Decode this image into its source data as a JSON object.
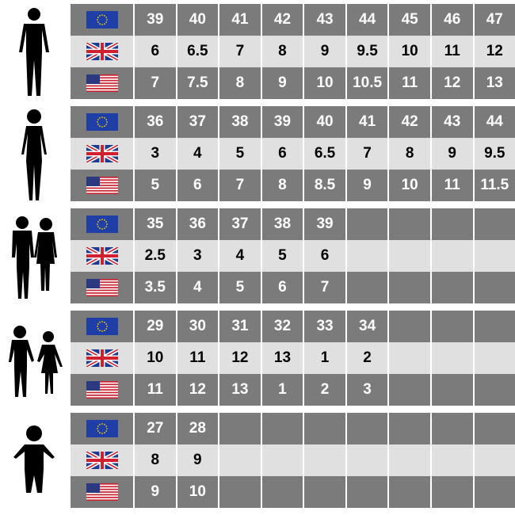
{
  "colors": {
    "dark_row": "#7b7b7b",
    "light_row": "#e0e0e0"
  },
  "row_flags": [
    "eu-flag-icon",
    "uk-flag-icon",
    "us-flag-icon"
  ],
  "groups": [
    {
      "figure": "man-silhouette-icon",
      "rows": [
        [
          "39",
          "40",
          "41",
          "42",
          "43",
          "44",
          "45",
          "46",
          "47"
        ],
        [
          "6",
          "6.5",
          "7",
          "8",
          "9",
          "9.5",
          "10",
          "11",
          "12"
        ],
        [
          "7",
          "7.5",
          "8",
          "9",
          "10",
          "10.5",
          "11",
          "12",
          "13"
        ]
      ]
    },
    {
      "figure": "woman-silhouette-icon",
      "rows": [
        [
          "36",
          "37",
          "38",
          "39",
          "40",
          "41",
          "42",
          "43",
          "44"
        ],
        [
          "3",
          "4",
          "5",
          "6",
          "6.5",
          "7",
          "8",
          "9",
          "9.5"
        ],
        [
          "5",
          "6",
          "7",
          "8",
          "8.5",
          "9",
          "10",
          "11",
          "11.5"
        ]
      ]
    },
    {
      "figure": "teens-silhouette-icon",
      "rows": [
        [
          "35",
          "36",
          "37",
          "38",
          "39",
          "",
          "",
          "",
          ""
        ],
        [
          "2.5",
          "3",
          "4",
          "5",
          "6",
          "",
          "",
          "",
          ""
        ],
        [
          "3.5",
          "4",
          "5",
          "6",
          "7",
          "",
          "",
          "",
          ""
        ]
      ]
    },
    {
      "figure": "children-silhouette-icon",
      "rows": [
        [
          "29",
          "30",
          "31",
          "32",
          "33",
          "34",
          "",
          "",
          ""
        ],
        [
          "10",
          "11",
          "12",
          "13",
          "1",
          "2",
          "",
          "",
          ""
        ],
        [
          "11",
          "12",
          "13",
          "1",
          "2",
          "3",
          "",
          "",
          ""
        ]
      ]
    },
    {
      "figure": "toddler-silhouette-icon",
      "rows": [
        [
          "27",
          "28",
          "",
          "",
          "",
          "",
          "",
          "",
          ""
        ],
        [
          "8",
          "9",
          "",
          "",
          "",
          "",
          "",
          "",
          ""
        ],
        [
          "9",
          "10",
          "",
          "",
          "",
          "",
          "",
          "",
          ""
        ]
      ]
    }
  ]
}
